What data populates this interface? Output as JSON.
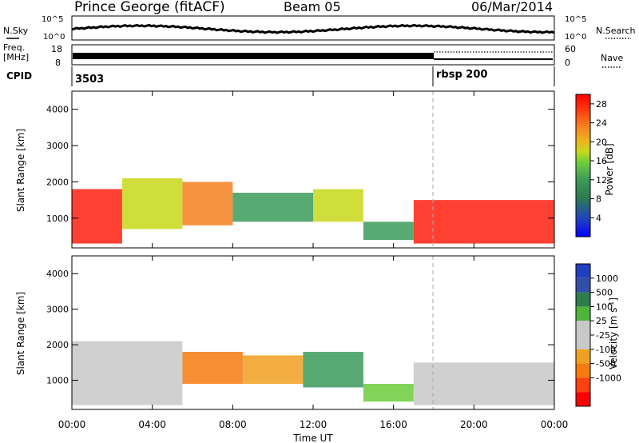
{
  "header": {
    "station": "Prince George (fitACF)",
    "beam": "Beam 05",
    "date": "06/Mar/2014"
  },
  "noise_panel": {
    "left_label": "N.Sky",
    "right_label": "N.Search",
    "left_ticks": [
      "10^5",
      "10^0"
    ],
    "right_ticks": [
      "10^5",
      "10^0"
    ]
  },
  "freq_panel": {
    "left_label_1": "Freq.",
    "left_label_2": "[MHz]",
    "left_ticks": [
      "18",
      "8"
    ],
    "right_label": "Nave",
    "right_ticks": [
      "60",
      "0"
    ]
  },
  "cpid_panel": {
    "label": "CPID",
    "segments": [
      {
        "text": "3503"
      },
      {
        "text": "rbsp 200"
      }
    ]
  },
  "power_panel": {
    "ylabel": "Slant Range [km]",
    "yticks": [
      "4000",
      "3000",
      "2000",
      "1000"
    ],
    "colorbar_label": "Power [dB]",
    "colorbar_ticks": [
      "28",
      "24",
      "20",
      "16",
      "12",
      "8",
      "4"
    ]
  },
  "velocity_panel": {
    "ylabel": "Slant Range [km]",
    "yticks": [
      "4000",
      "3000",
      "2000",
      "1000"
    ],
    "colorbar_label": "Velocity [m s",
    "colorbar_label_sup": "-1",
    "colorbar_label_end": "]",
    "colorbar_ticks": [
      "1000",
      "500",
      "100",
      "25",
      "-25",
      "-100",
      "-500",
      "-1000"
    ]
  },
  "xaxis": {
    "label": "Time UT",
    "ticks": [
      "00:00",
      "04:00",
      "08:00",
      "12:00",
      "16:00",
      "20:00",
      "00:00"
    ]
  },
  "colors": {
    "power_scale": [
      "#0000ff",
      "#2040c0",
      "#2e7d4f",
      "#3c9a5a",
      "#6ccd3c",
      "#c8d81a",
      "#f0b020",
      "#f58020",
      "#ff5010",
      "#ff2010",
      "#ff0000"
    ],
    "velocity_scale": [
      "#2040c0",
      "#3050a8",
      "#2e7d4f",
      "#4fb43c",
      "#c8c8c8",
      "#c8c8c8",
      "#f0a020",
      "#f57a10",
      "#ff4010",
      "#ff0000"
    ],
    "ground_scatter": "#c8c8c8"
  },
  "chart_data": [
    {
      "type": "heatmap",
      "title": "Power",
      "xlabel": "Time UT",
      "ylabel": "Slant Range [km]",
      "xlim": [
        "00:00",
        "00:00"
      ],
      "ylim": [
        180,
        4500
      ],
      "colorbar": {
        "label": "Power [dB]",
        "range": [
          0,
          30
        ]
      },
      "regions": [
        {
          "t_start": 0.0,
          "t_end": 2.5,
          "r_low": 300,
          "r_high": 1800,
          "value": 26
        },
        {
          "t_start": 2.5,
          "t_end": 5.5,
          "r_low": 700,
          "r_high": 2100,
          "value": 14
        },
        {
          "t_start": 5.5,
          "t_end": 8.0,
          "r_low": 800,
          "r_high": 2000,
          "value": 20
        },
        {
          "t_start": 8.0,
          "t_end": 12.0,
          "r_low": 900,
          "r_high": 1700,
          "value": 10
        },
        {
          "t_start": 12.0,
          "t_end": 14.5,
          "r_low": 900,
          "r_high": 1800,
          "value": 16
        },
        {
          "t_start": 14.5,
          "t_end": 17.0,
          "r_low": 400,
          "r_high": 900,
          "value": 8
        },
        {
          "t_start": 17.0,
          "t_end": 24.0,
          "r_low": 300,
          "r_high": 1500,
          "value": 28
        }
      ]
    },
    {
      "type": "heatmap",
      "title": "Velocity",
      "xlabel": "Time UT",
      "ylabel": "Slant Range [km]",
      "xlim": [
        "00:00",
        "00:00"
      ],
      "ylim": [
        180,
        4500
      ],
      "colorbar": {
        "label": "Velocity [m s-1]",
        "range": [
          -1000,
          1000
        ]
      },
      "regions": [
        {
          "t_start": 0.0,
          "t_end": 5.5,
          "r_low": 300,
          "r_high": 2100,
          "value": 0
        },
        {
          "t_start": 5.5,
          "t_end": 8.5,
          "r_low": 900,
          "r_high": 1800,
          "value": -400
        },
        {
          "t_start": 8.5,
          "t_end": 11.5,
          "r_low": 900,
          "r_high": 1700,
          "value": -150
        },
        {
          "t_start": 11.5,
          "t_end": 14.5,
          "r_low": 800,
          "r_high": 1800,
          "value": 200
        },
        {
          "t_start": 14.5,
          "t_end": 17.0,
          "r_low": 400,
          "r_high": 900,
          "value": 60
        },
        {
          "t_start": 17.0,
          "t_end": 24.0,
          "r_low": 300,
          "r_high": 1500,
          "value": 0
        }
      ]
    }
  ]
}
